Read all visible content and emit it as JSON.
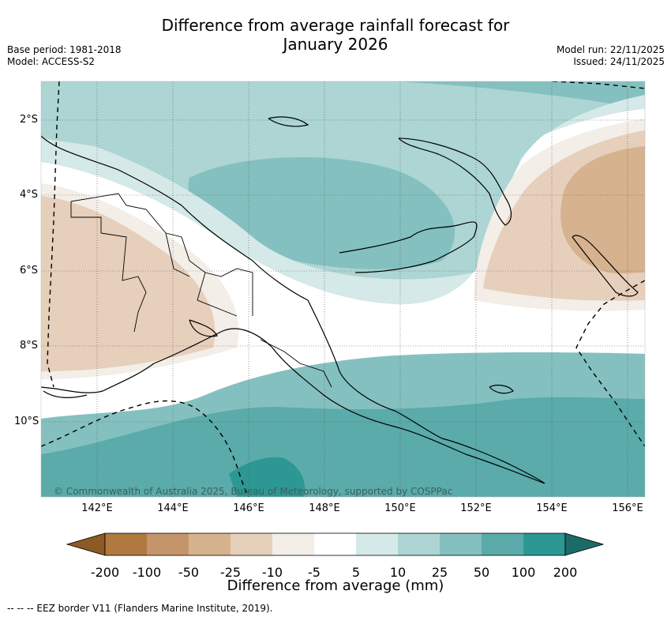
{
  "title_line1": "Difference from average rainfall forecast for",
  "title_line2": "January 2026",
  "meta": {
    "base_period": "Base period: 1981-2018",
    "model": "Model: ACCESS-S2",
    "model_run": "Model run: 22/11/2025",
    "issued": "Issued: 24/11/2025"
  },
  "map": {
    "lon_ticks": [
      "142°E",
      "144°E",
      "146°E",
      "148°E",
      "150°E",
      "152°E",
      "154°E",
      "156°E"
    ],
    "lat_ticks": [
      "2°S",
      "4°S",
      "6°S",
      "8°S",
      "10°S"
    ],
    "copyright": "© Commonwealth of Australia 2025, Bureau of Meteorology, supported by COSPPac"
  },
  "colorbar": {
    "labels": [
      "-200",
      "-100",
      "-50",
      "-25",
      "-10",
      "-5",
      "5",
      "10",
      "25",
      "50",
      "100",
      "200"
    ],
    "colors": [
      "#8c5a24",
      "#b07940",
      "#c4956a",
      "#d6b28f",
      "#e6cfbb",
      "#f3eee7",
      "#ffffff",
      "#d4e9e8",
      "#acd5d4",
      "#84c0bf",
      "#5aabaa",
      "#2d9793",
      "#1b6b68"
    ],
    "title": "Difference from average (mm)"
  },
  "legend_note": "--  --  -- EEZ border V11 (Flanders Marine Institute, 2019)."
}
